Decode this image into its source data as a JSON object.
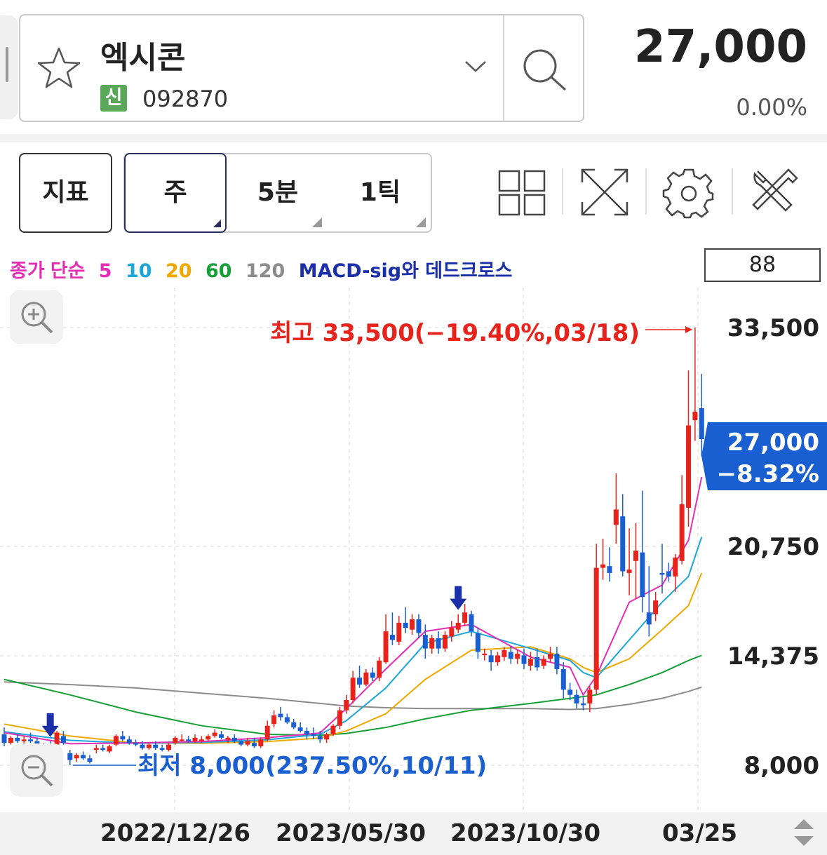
{
  "header": {
    "stock_name": "엑시콘",
    "market_badge": "신",
    "stock_code": "092870",
    "price": "27,000",
    "change_rate": "0.00%",
    "icons": [
      "star-icon",
      "chevron-down-icon",
      "search-icon"
    ]
  },
  "toolbar": {
    "indicator_label": "지표",
    "periods": [
      "주",
      "5분",
      "1틱"
    ],
    "selected_period": "주",
    "icons": [
      "grid-layout-icon",
      "fullscreen-icon",
      "gear-icon",
      "tools-icon"
    ]
  },
  "chart_legend": {
    "close": "종가",
    "ma_type": "단순",
    "ma5": "5",
    "ma10": "10",
    "ma20": "20",
    "ma60": "60",
    "ma120": "120",
    "signal": "MACD-sig와 데드크로스"
  },
  "visible_count": "88",
  "annotations": {
    "high": "최고 33,500(−19.40%,03/18)",
    "low": "최저 8,000(237.50%,10/11)"
  },
  "current_badge": {
    "price": "27,000",
    "change": "−8.32%"
  },
  "colors": {
    "up": "#e8231c",
    "down": "#1a5fd1",
    "ma5": "#e42fb4",
    "ma10": "#1ca6da",
    "ma20": "#f0a800",
    "ma60": "#17a038",
    "ma120": "#8c8c8c",
    "signal": "#1a2fa8",
    "high_text": "#e8231c",
    "low_text": "#1a5fd1"
  },
  "chart_data": {
    "type": "candlestick",
    "y_ticks": [
      "33,500",
      "20,750",
      "14,375",
      "8,000"
    ],
    "y_tick_values": [
      33500,
      20750,
      14375,
      8000
    ],
    "ylim": [
      5900,
      37000
    ],
    "x_labels": [
      "2022/12/26",
      "2023/05/30",
      "2023/10/30",
      "03/25"
    ],
    "grid": true,
    "candles": [
      [
        9800,
        10200,
        9100,
        9300
      ],
      [
        9300,
        9700,
        9200,
        9600
      ],
      [
        9600,
        9800,
        9300,
        9400
      ],
      [
        9400,
        9700,
        9200,
        9500
      ],
      [
        9500,
        9900,
        9300,
        9400
      ],
      [
        9400,
        9600,
        8900,
        9000
      ],
      [
        9000,
        9300,
        8900,
        9200
      ],
      [
        9100,
        9400,
        8900,
        9000
      ],
      [
        9200,
        10000,
        9100,
        9900
      ],
      [
        9700,
        10000,
        9200,
        9300
      ],
      [
        8700,
        8900,
        8000,
        8300
      ],
      [
        8400,
        8700,
        8200,
        8600
      ],
      [
        8600,
        8800,
        8300,
        8400
      ],
      [
        8400,
        8600,
        8100,
        8200
      ],
      [
        8900,
        9200,
        8700,
        9000
      ],
      [
        9000,
        9200,
        8800,
        8900
      ],
      [
        8800,
        9200,
        8700,
        9100
      ],
      [
        9200,
        9800,
        9100,
        9700
      ],
      [
        9700,
        10000,
        9400,
        9500
      ],
      [
        9500,
        9700,
        9200,
        9300
      ],
      [
        9300,
        9500,
        9100,
        9200
      ],
      [
        9200,
        9400,
        8900,
        9000
      ],
      [
        9000,
        9300,
        8900,
        9200
      ],
      [
        9200,
        9400,
        8900,
        9000
      ],
      [
        9000,
        9200,
        8800,
        8900
      ],
      [
        8900,
        9300,
        8800,
        9200
      ],
      [
        9300,
        9700,
        9200,
        9600
      ],
      [
        9500,
        9800,
        9400,
        9500
      ],
      [
        9500,
        9700,
        9300,
        9400
      ],
      [
        9400,
        9800,
        9300,
        9600
      ],
      [
        9500,
        9700,
        9300,
        9500
      ],
      [
        9500,
        9800,
        9400,
        9700
      ],
      [
        9700,
        10100,
        9600,
        9900
      ],
      [
        9800,
        10000,
        9500,
        9600
      ],
      [
        9500,
        9700,
        9300,
        9600
      ],
      [
        9600,
        9800,
        9300,
        9400
      ],
      [
        9400,
        9500,
        9100,
        9200
      ],
      [
        9200,
        9600,
        9100,
        9400
      ],
      [
        9300,
        9600,
        9000,
        9100
      ],
      [
        9100,
        9600,
        9000,
        9500
      ],
      [
        9500,
        10600,
        9400,
        10300
      ],
      [
        10400,
        11200,
        10200,
        10900
      ],
      [
        11000,
        11400,
        10600,
        10800
      ],
      [
        10800,
        11000,
        10400,
        10500
      ],
      [
        10500,
        10700,
        10100,
        10200
      ],
      [
        10200,
        10500,
        9900,
        10000
      ],
      [
        10000,
        10200,
        9500,
        9800
      ],
      [
        9800,
        10200,
        9500,
        9700
      ],
      [
        9700,
        10000,
        9300,
        9500
      ],
      [
        9500,
        9900,
        9300,
        9800
      ],
      [
        9800,
        10400,
        9700,
        10300
      ],
      [
        10300,
        11400,
        10100,
        11200
      ],
      [
        11200,
        12100,
        11000,
        11800
      ],
      [
        11800,
        13500,
        11600,
        13100
      ],
      [
        13100,
        13800,
        12500,
        12700
      ],
      [
        12700,
        13600,
        12600,
        13400
      ],
      [
        13400,
        13700,
        12900,
        13100
      ],
      [
        13100,
        14300,
        12900,
        14100
      ],
      [
        14000,
        16800,
        13900,
        15800
      ],
      [
        15600,
        16900,
        15000,
        15300
      ],
      [
        15200,
        16700,
        15000,
        16300
      ],
      [
        16300,
        17200,
        15700,
        16000
      ],
      [
        15900,
        16800,
        15600,
        16500
      ],
      [
        16500,
        16800,
        15400,
        15700
      ],
      [
        15600,
        16200,
        14200,
        14800
      ],
      [
        14800,
        15600,
        14500,
        15400
      ],
      [
        15400,
        15800,
        14500,
        14800
      ],
      [
        14800,
        15800,
        14600,
        15600
      ],
      [
        15500,
        16400,
        15200,
        16000
      ],
      [
        15900,
        16800,
        15700,
        16300
      ],
      [
        16300,
        17400,
        16100,
        16900
      ],
      [
        16800,
        17000,
        15500,
        15800
      ],
      [
        15700,
        16000,
        14200,
        14600
      ],
      [
        14500,
        14800,
        14100,
        14500
      ],
      [
        14400,
        14700,
        13500,
        14000
      ],
      [
        14000,
        14600,
        13800,
        14400
      ],
      [
        14300,
        14900,
        14100,
        14700
      ],
      [
        14600,
        14900,
        13900,
        14200
      ],
      [
        14200,
        14700,
        13900,
        14500
      ],
      [
        14400,
        14800,
        13600,
        13900
      ],
      [
        13800,
        14600,
        13500,
        14200
      ],
      [
        14300,
        14800,
        13500,
        13700
      ],
      [
        13800,
        14400,
        13600,
        14200
      ],
      [
        14200,
        14900,
        14000,
        14500
      ],
      [
        14500,
        14900,
        13300,
        13600
      ],
      [
        13600,
        14000,
        11900,
        12400
      ],
      [
        12400,
        12800,
        11800,
        12100
      ],
      [
        12100,
        12400,
        11300,
        11600
      ],
      [
        11600,
        12000,
        11200,
        11500
      ],
      [
        11600,
        12600,
        11100,
        12400
      ],
      [
        12400,
        20900,
        12100,
        19500
      ],
      [
        19500,
        21200,
        18800,
        19700
      ],
      [
        19600,
        20700,
        18700,
        19200
      ],
      [
        22000,
        25000,
        20900,
        22900
      ],
      [
        22500,
        23800,
        19000,
        19300
      ],
      [
        19200,
        21800,
        17900,
        19400
      ],
      [
        19900,
        22100,
        17700,
        20500
      ],
      [
        20400,
        24000,
        16900,
        17800
      ],
      [
        16900,
        19600,
        15500,
        16200
      ],
      [
        16800,
        18100,
        16400,
        17600
      ],
      [
        19200,
        20900,
        18000,
        19100
      ],
      [
        19300,
        19800,
        18700,
        19000
      ],
      [
        19000,
        20300,
        18100,
        20100
      ],
      [
        19900,
        24900,
        19700,
        23200
      ],
      [
        23000,
        31000,
        21900,
        27800
      ],
      [
        28100,
        33500,
        26900,
        28600
      ],
      [
        28800,
        30800,
        26000,
        27000
      ]
    ],
    "ma5": [
      [
        0,
        9900
      ],
      [
        10,
        9250
      ],
      [
        20,
        9300
      ],
      [
        30,
        9380
      ],
      [
        40,
        9600
      ],
      [
        48,
        9880
      ],
      [
        52,
        11300
      ],
      [
        58,
        13600
      ],
      [
        64,
        15800
      ],
      [
        71,
        16200
      ],
      [
        80,
        14300
      ],
      [
        86,
        13700
      ],
      [
        88,
        12100
      ],
      [
        90,
        13200
      ],
      [
        95,
        17500
      ],
      [
        100,
        18500
      ],
      [
        104,
        21100
      ],
      [
        106,
        24800
      ]
    ],
    "ma10": [
      [
        0,
        9950
      ],
      [
        10,
        9450
      ],
      [
        20,
        9280
      ],
      [
        30,
        9330
      ],
      [
        40,
        9480
      ],
      [
        48,
        9800
      ],
      [
        52,
        10600
      ],
      [
        58,
        12500
      ],
      [
        64,
        15100
      ],
      [
        71,
        15800
      ],
      [
        80,
        14800
      ],
      [
        86,
        14100
      ],
      [
        88,
        13400
      ],
      [
        90,
        13100
      ],
      [
        95,
        15300
      ],
      [
        100,
        17500
      ],
      [
        104,
        19000
      ],
      [
        106,
        21300
      ]
    ],
    "ma20": [
      [
        0,
        10400
      ],
      [
        10,
        9700
      ],
      [
        20,
        9300
      ],
      [
        30,
        9280
      ],
      [
        40,
        9380
      ],
      [
        48,
        9580
      ],
      [
        52,
        10000
      ],
      [
        58,
        11000
      ],
      [
        64,
        13000
      ],
      [
        71,
        14700
      ],
      [
        80,
        14900
      ],
      [
        86,
        14200
      ],
      [
        88,
        13700
      ],
      [
        90,
        13400
      ],
      [
        95,
        14200
      ],
      [
        100,
        15900
      ],
      [
        104,
        17300
      ],
      [
        106,
        19200
      ]
    ],
    "ma60": [
      [
        0,
        13000
      ],
      [
        10,
        12100
      ],
      [
        20,
        11100
      ],
      [
        30,
        10300
      ],
      [
        40,
        9800
      ],
      [
        48,
        9750
      ],
      [
        52,
        9850
      ],
      [
        58,
        10200
      ],
      [
        64,
        10700
      ],
      [
        71,
        11200
      ],
      [
        80,
        11600
      ],
      [
        86,
        11900
      ],
      [
        90,
        12100
      ],
      [
        95,
        12700
      ],
      [
        100,
        13400
      ],
      [
        104,
        14100
      ],
      [
        106,
        14400
      ]
    ],
    "ma120": [
      [
        0,
        12850
      ],
      [
        10,
        12700
      ],
      [
        20,
        12500
      ],
      [
        30,
        12200
      ],
      [
        40,
        11900
      ],
      [
        48,
        11600
      ],
      [
        52,
        11450
      ],
      [
        58,
        11350
      ],
      [
        64,
        11300
      ],
      [
        71,
        11300
      ],
      [
        80,
        11300
      ],
      [
        86,
        11250
      ],
      [
        90,
        11300
      ],
      [
        95,
        11550
      ],
      [
        100,
        11900
      ],
      [
        104,
        12300
      ],
      [
        106,
        12550
      ]
    ],
    "signals": [
      [
        7,
        "dead-cross"
      ],
      [
        69,
        "dead-cross"
      ]
    ]
  }
}
